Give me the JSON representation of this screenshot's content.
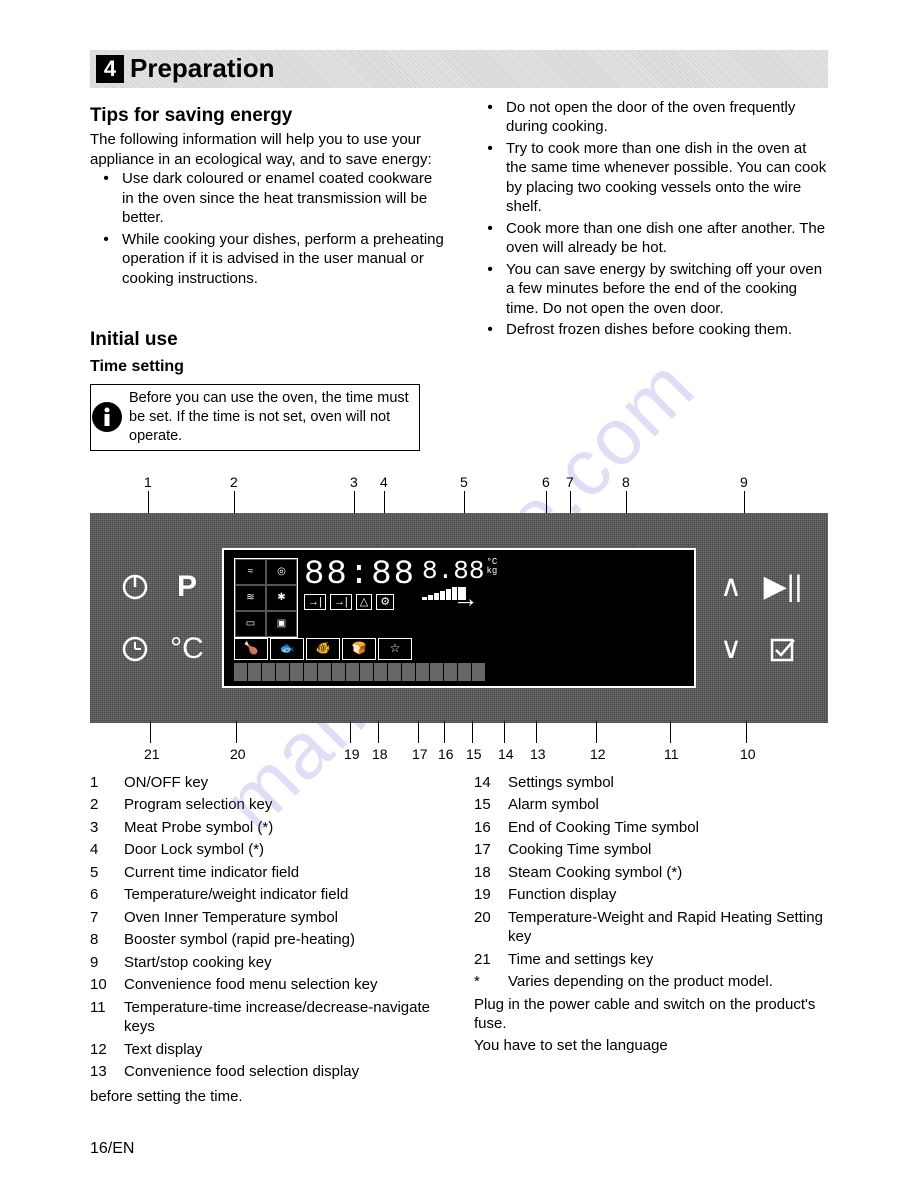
{
  "section": {
    "num": "4",
    "title": "Preparation"
  },
  "tips": {
    "heading": "Tips for saving energy",
    "intro": "The following information will help you to use your appliance in an ecological way, and to save energy:",
    "left": [
      "Use dark coloured or enamel coated cookware in the oven since the heat transmission will be better.",
      "While cooking your dishes, perform a preheating operation if it is advised in the user manual or cooking instructions."
    ],
    "right": [
      "Do not open the door of the oven frequently during cooking.",
      "Try to cook more than one dish in the oven at the same time whenever possible. You can cook by placing two cooking vessels onto the wire shelf.",
      "Cook more than one dish one after another. The oven will already be hot.",
      "You can save energy by switching off your oven a few minutes before the end of the cooking time. Do not open the oven door.",
      "Defrost frozen dishes before cooking them."
    ]
  },
  "initial": {
    "heading": "Initial use",
    "sub": "Time setting",
    "note": "Before you can use the oven, the time must be set. If the time is not set, oven will not operate."
  },
  "callouts_top": [
    "1",
    "2",
    "3",
    "4",
    "5",
    "6",
    "7",
    "8",
    "9"
  ],
  "callouts_bot": [
    "21",
    "20",
    "19",
    "18",
    "17",
    "16",
    "15",
    "14",
    "13",
    "12",
    "11",
    "10"
  ],
  "callouts_top_x": [
    54,
    140,
    260,
    290,
    370,
    452,
    476,
    532,
    650
  ],
  "callouts_bot_x": [
    54,
    140,
    254,
    282,
    322,
    348,
    376,
    408,
    440,
    500,
    574,
    650
  ],
  "panel": {
    "btn_onoff": "⏻",
    "btn_prog": "P",
    "btn_clock": "🕐",
    "btn_temp": "°C",
    "btn_up": "∧",
    "btn_down": "∨",
    "btn_play": "▶||",
    "btn_menu": "☑",
    "lcd_time": "88:88",
    "lcd_temp_val": "8.88",
    "lcd_temp_unit_c": "°C",
    "lcd_temp_unit_kg": "kg"
  },
  "legend_left": [
    {
      "n": "1",
      "t": "ON/OFF key"
    },
    {
      "n": "2",
      "t": "Program selection key"
    },
    {
      "n": "3",
      "t": "Meat Probe symbol (*)"
    },
    {
      "n": "4",
      "t": "Door Lock symbol (*)"
    },
    {
      "n": "5",
      "t": "Current time indicator field"
    },
    {
      "n": "6",
      "t": "Temperature/weight indicator field"
    },
    {
      "n": "7",
      "t": "Oven Inner Temperature symbol"
    },
    {
      "n": "8",
      "t": "Booster symbol (rapid pre-heating)"
    },
    {
      "n": "9",
      "t": "Start/stop cooking key"
    },
    {
      "n": "10",
      "t": "Convenience food menu selection key"
    },
    {
      "n": "11",
      "t": "Temperature-time increase/decrease-navigate keys"
    },
    {
      "n": "12",
      "t": "Text display"
    },
    {
      "n": "13",
      "t": "Convenience food selection display"
    }
  ],
  "legend_right": [
    {
      "n": "14",
      "t": "Settings symbol"
    },
    {
      "n": "15",
      "t": "Alarm symbol"
    },
    {
      "n": "16",
      "t": "End of Cooking Time symbol"
    },
    {
      "n": "17",
      "t": "Cooking Time symbol"
    },
    {
      "n": "18",
      "t": "Steam Cooking symbol (*)"
    },
    {
      "n": "19",
      "t": "Function display"
    },
    {
      "n": "20",
      "t": "Temperature-Weight and Rapid Heating Setting key"
    },
    {
      "n": "21",
      "t": "Time and settings key"
    },
    {
      "n": "*",
      "t": "Varies depending on the product model."
    }
  ],
  "closing1": "Plug in the power cable and switch on the product's fuse.",
  "closing2": "You have to set the language",
  "closing3": "before setting the time.",
  "page": "16/EN",
  "watermark": "manualslive.com"
}
